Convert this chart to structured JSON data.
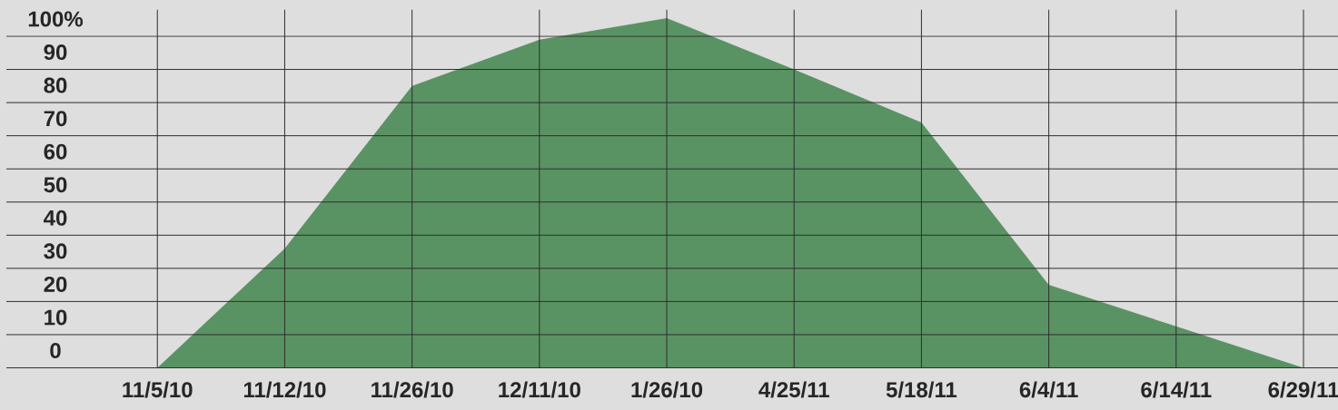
{
  "chart_data": {
    "type": "area",
    "categories": [
      "11/5/10",
      "11/12/10",
      "11/26/10",
      "12/11/10",
      "1/26/10",
      "4/25/11",
      "5/18/11",
      "6/4/11",
      "6/14/11",
      "6/29/11"
    ],
    "values": [
      0,
      36,
      85,
      99,
      105.5,
      90,
      74,
      25,
      12.5,
      0
    ],
    "color": "#5a9363",
    "ylim": [
      0,
      108
    ],
    "yticks": [
      0,
      10,
      20,
      30,
      40,
      50,
      60,
      70,
      80,
      90,
      {
        "value": 100,
        "label": "100%"
      }
    ],
    "grid": true
  }
}
